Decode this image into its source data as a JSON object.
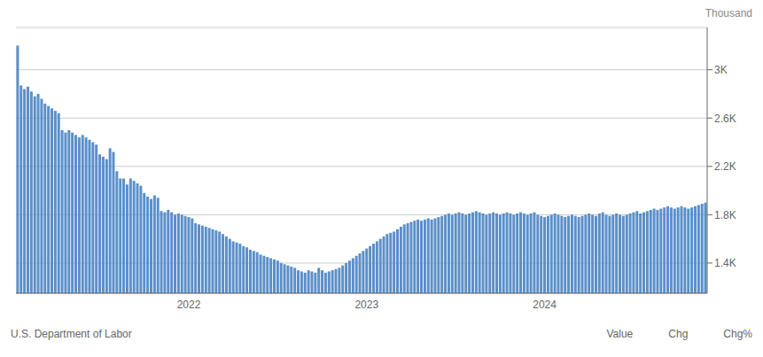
{
  "chart_data": {
    "type": "bar",
    "ylabel": "Thousand",
    "annotations": [
      "U.S. Department of Labor",
      "Value",
      "Chg",
      "Chg%"
    ],
    "color": "#5b8fc8",
    "grid": true,
    "ylim": [
      1150,
      3350
    ],
    "yticks": [
      {
        "value": 1400,
        "label": "1.4K"
      },
      {
        "value": 1800,
        "label": "1.8K"
      },
      {
        "value": 2200,
        "label": "2.2K"
      },
      {
        "value": 2600,
        "label": "2.6K"
      },
      {
        "value": 3000,
        "label": "3K"
      }
    ],
    "categories": [
      null,
      null,
      null,
      null,
      null,
      null,
      null,
      null,
      null,
      null,
      null,
      null,
      null,
      null,
      null,
      null,
      null,
      null,
      null,
      null,
      null,
      null,
      null,
      null,
      null,
      null,
      null,
      null,
      null,
      null,
      null,
      null,
      null,
      null,
      null,
      null,
      null,
      null,
      null,
      null,
      null,
      null,
      null,
      null,
      null,
      null,
      null,
      null,
      null,
      null,
      "2022",
      null,
      null,
      null,
      null,
      null,
      null,
      null,
      null,
      null,
      null,
      null,
      null,
      null,
      null,
      null,
      null,
      null,
      null,
      null,
      null,
      null,
      null,
      null,
      null,
      null,
      null,
      null,
      null,
      null,
      null,
      null,
      null,
      null,
      null,
      null,
      null,
      null,
      null,
      null,
      null,
      null,
      null,
      null,
      null,
      null,
      null,
      null,
      null,
      null,
      null,
      null,
      "2023",
      null,
      null,
      null,
      null,
      null,
      null,
      null,
      null,
      null,
      null,
      null,
      null,
      null,
      null,
      null,
      null,
      null,
      null,
      null,
      null,
      null,
      null,
      null,
      null,
      null,
      null,
      null,
      null,
      null,
      null,
      null,
      null,
      null,
      null,
      null,
      null,
      null,
      null,
      null,
      null,
      null,
      null,
      null,
      null,
      null,
      null,
      null,
      null,
      null,
      null,
      null,
      "2024",
      null,
      null,
      null,
      null,
      null,
      null,
      null,
      null,
      null,
      null,
      null,
      null,
      null,
      null,
      null,
      null,
      null,
      null,
      null,
      null,
      null,
      null,
      null,
      null,
      null,
      null,
      null,
      null,
      null,
      null,
      null,
      null,
      null,
      null,
      null,
      null,
      null,
      null,
      null,
      null,
      null,
      null,
      null,
      null,
      null,
      null,
      null
    ],
    "values": [
      3200,
      2870,
      2840,
      2860,
      2820,
      2780,
      2800,
      2760,
      2720,
      2700,
      2680,
      2660,
      2640,
      2500,
      2480,
      2500,
      2480,
      2460,
      2440,
      2460,
      2440,
      2420,
      2400,
      2380,
      2300,
      2280,
      2260,
      2350,
      2320,
      2160,
      2100,
      2100,
      2050,
      2100,
      2080,
      2060,
      2040,
      1980,
      1950,
      1930,
      1960,
      1940,
      1830,
      1820,
      1840,
      1820,
      1800,
      1810,
      1800,
      1790,
      1780,
      1770,
      1730,
      1720,
      1710,
      1700,
      1690,
      1680,
      1670,
      1660,
      1640,
      1620,
      1600,
      1580,
      1570,
      1560,
      1540,
      1530,
      1510,
      1500,
      1490,
      1470,
      1460,
      1450,
      1440,
      1430,
      1420,
      1400,
      1390,
      1380,
      1370,
      1360,
      1340,
      1330,
      1320,
      1340,
      1330,
      1320,
      1360,
      1340,
      1320,
      1330,
      1340,
      1350,
      1360,
      1380,
      1400,
      1420,
      1440,
      1460,
      1480,
      1500,
      1520,
      1540,
      1560,
      1580,
      1600,
      1620,
      1640,
      1650,
      1660,
      1680,
      1700,
      1720,
      1730,
      1740,
      1750,
      1760,
      1750,
      1760,
      1770,
      1760,
      1770,
      1780,
      1790,
      1800,
      1810,
      1800,
      1810,
      1820,
      1810,
      1800,
      1810,
      1820,
      1830,
      1820,
      1810,
      1800,
      1810,
      1820,
      1810,
      1800,
      1810,
      1820,
      1810,
      1800,
      1810,
      1820,
      1810,
      1800,
      1810,
      1820,
      1800,
      1790,
      1780,
      1790,
      1800,
      1810,
      1800,
      1790,
      1780,
      1790,
      1800,
      1790,
      1780,
      1790,
      1800,
      1810,
      1800,
      1790,
      1810,
      1820,
      1800,
      1790,
      1800,
      1810,
      1800,
      1790,
      1800,
      1810,
      1820,
      1830,
      1810,
      1820,
      1830,
      1840,
      1850,
      1840,
      1850,
      1860,
      1870,
      1860,
      1850,
      1860,
      1870,
      1860,
      1850,
      1860,
      1870,
      1880,
      1890,
      1900
    ]
  }
}
